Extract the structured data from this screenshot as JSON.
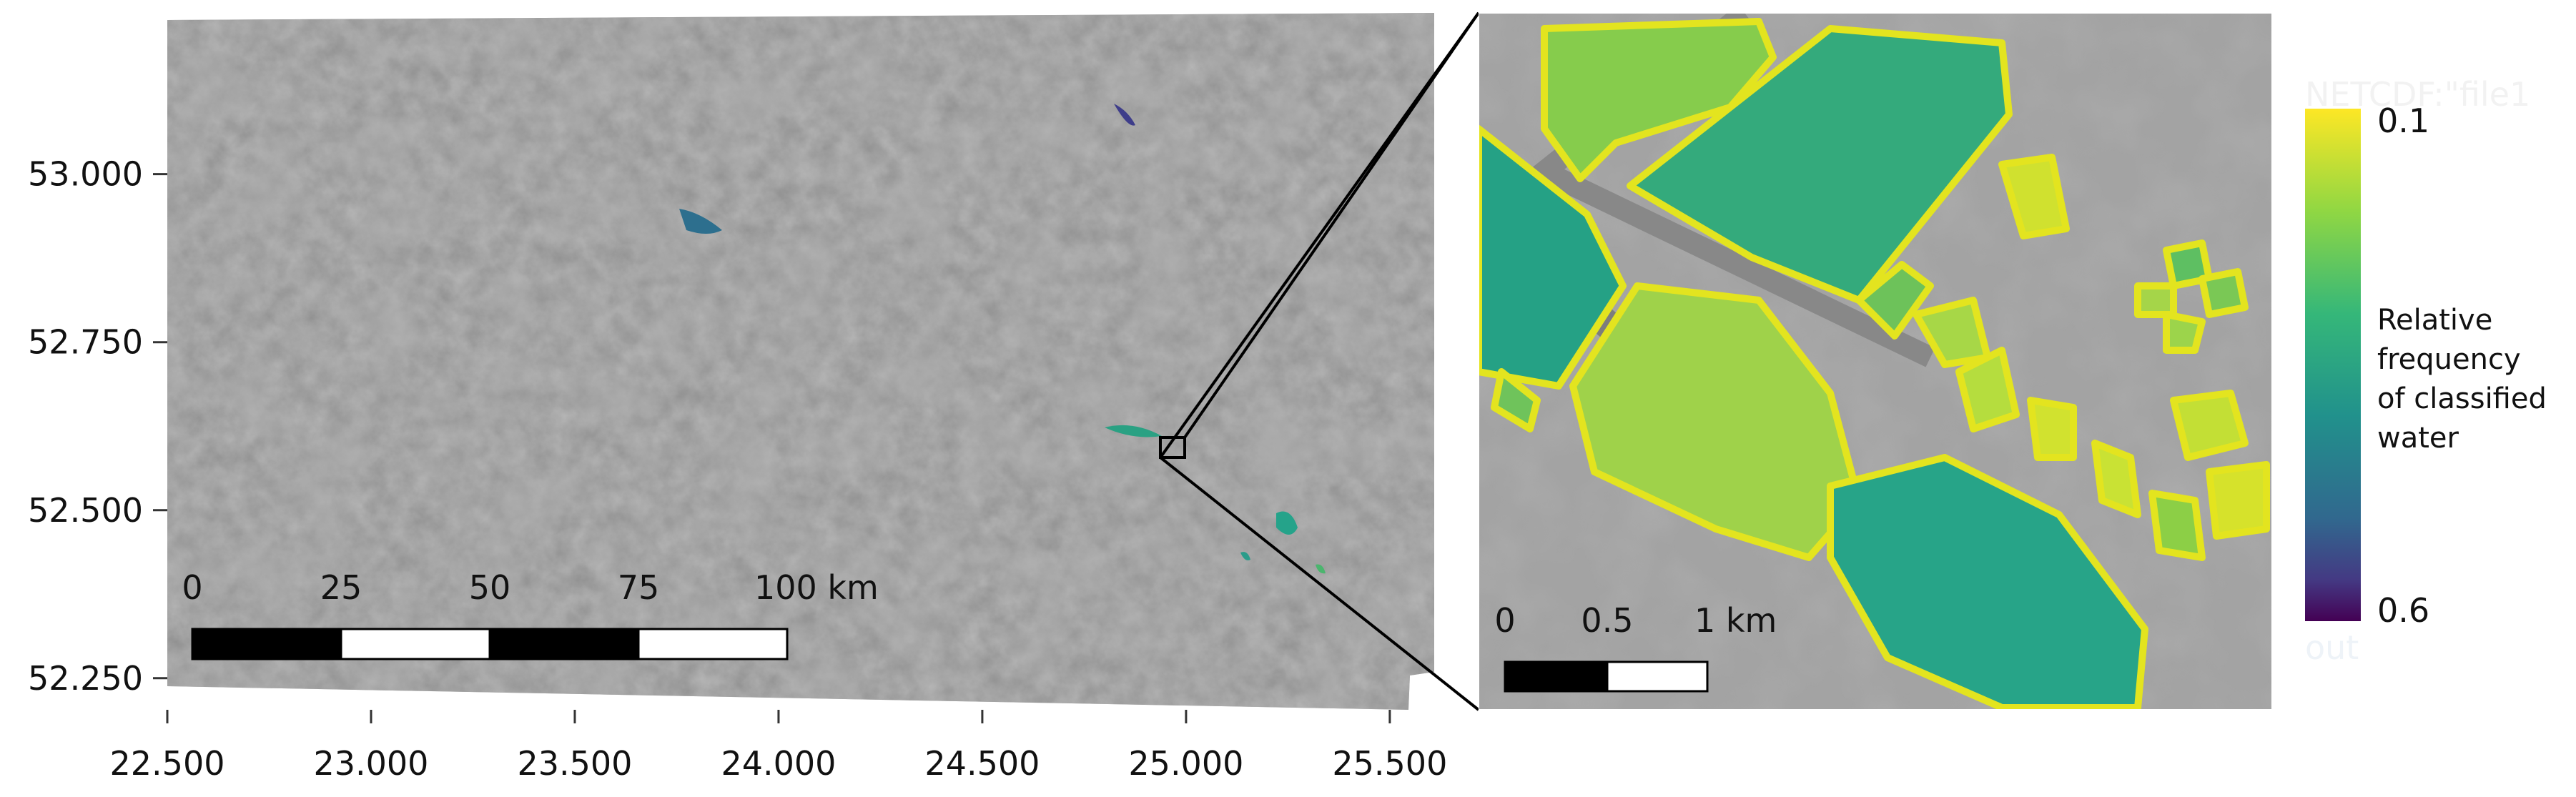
{
  "map": {
    "xlim": [
      22.5,
      25.609
    ],
    "ylim": [
      52.203,
      53.24
    ],
    "xticks": [
      {
        "value": 22.5,
        "label": "22.500"
      },
      {
        "value": 23.0,
        "label": "23.000"
      },
      {
        "value": 23.5,
        "label": "23.500"
      },
      {
        "value": 24.0,
        "label": "24.000"
      },
      {
        "value": 24.5,
        "label": "24.500"
      },
      {
        "value": 25.0,
        "label": "25.000"
      },
      {
        "value": 25.5,
        "label": "25.500"
      }
    ],
    "yticks": [
      {
        "value": 52.25,
        "label": "52.250"
      },
      {
        "value": 52.5,
        "label": "52.500"
      },
      {
        "value": 52.75,
        "label": "52.750"
      },
      {
        "value": 53.0,
        "label": "53.000"
      }
    ],
    "scalebar": {
      "labels": [
        "0",
        "25",
        "50",
        "75",
        "100 km"
      ]
    }
  },
  "inset": {
    "scalebar": {
      "labels": [
        "0",
        "0.5",
        "1 km"
      ]
    }
  },
  "colorbar": {
    "top_label": "0.1",
    "bottom_label": "0.6",
    "title_lines": [
      "Relative",
      "frequency",
      "of classified",
      "water"
    ]
  },
  "faint_text": {
    "layer": "NETCDF:\"file1",
    "out": "out"
  }
}
